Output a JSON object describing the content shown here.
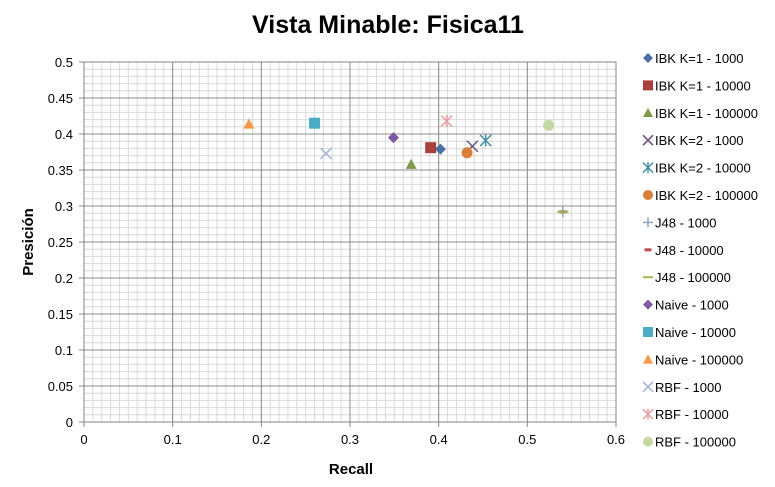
{
  "chart_data": {
    "type": "scatter",
    "title": "Vista Minable: Fisica11",
    "xlabel": "Recall",
    "ylabel": "Presición",
    "xlim": [
      0,
      0.6
    ],
    "ylim": [
      0,
      0.5
    ],
    "x_ticks": [
      "0",
      "0.1",
      "0.2",
      "0.3",
      "0.4",
      "0.5",
      "0.6"
    ],
    "y_ticks": [
      "0",
      "0.05",
      "0.1",
      "0.15",
      "0.2",
      "0.25",
      "0.3",
      "0.35",
      "0.4",
      "0.45",
      "0.5"
    ],
    "grid": true,
    "legend_position": "right",
    "series": [
      {
        "name": "IBK K=1 - 1000",
        "marker": "diamond",
        "color": "#4a6fa5",
        "x": 0.402,
        "y": 0.379
      },
      {
        "name": "IBK K=1 - 10000",
        "marker": "square",
        "color": "#a8403e",
        "x": 0.391,
        "y": 0.381
      },
      {
        "name": "IBK K=1 - 100000",
        "marker": "triangle",
        "color": "#7f9a48",
        "x": 0.369,
        "y": 0.358
      },
      {
        "name": "IBK K=2 - 1000",
        "marker": "x",
        "color": "#6a5080",
        "x": 0.438,
        "y": 0.383
      },
      {
        "name": "IBK K=2 - 10000",
        "marker": "star",
        "color": "#3e8ea5",
        "x": 0.453,
        "y": 0.391
      },
      {
        "name": "IBK K=2 - 100000",
        "marker": "circle",
        "color": "#d97f3a",
        "x": 0.432,
        "y": 0.374
      },
      {
        "name": "J48 - 1000",
        "marker": "plus",
        "color": "#8aa4cc",
        "x": 0.54,
        "y": 0.292
      },
      {
        "name": "J48 - 10000",
        "marker": "dash",
        "color": "#c0504d",
        "x": 0.54,
        "y": 0.292
      },
      {
        "name": "J48 - 100000",
        "marker": "hline",
        "color": "#9bbb59",
        "x": 0.54,
        "y": 0.292
      },
      {
        "name": "Naive - 1000",
        "marker": "diamond",
        "color": "#7b5a9e",
        "x": 0.349,
        "y": 0.395
      },
      {
        "name": "Naive - 10000",
        "marker": "square",
        "color": "#4bacc6",
        "x": 0.26,
        "y": 0.415
      },
      {
        "name": "Naive - 100000",
        "marker": "triangle",
        "color": "#f79646",
        "x": 0.186,
        "y": 0.414
      },
      {
        "name": "RBF - 1000",
        "marker": "x",
        "color": "#a5b4d8",
        "x": 0.273,
        "y": 0.373
      },
      {
        "name": "RBF - 10000",
        "marker": "star",
        "color": "#e6a0a0",
        "x": 0.409,
        "y": 0.418
      },
      {
        "name": "RBF - 100000",
        "marker": "circle",
        "color": "#c4d9a4",
        "x": 0.524,
        "y": 0.412
      }
    ]
  }
}
